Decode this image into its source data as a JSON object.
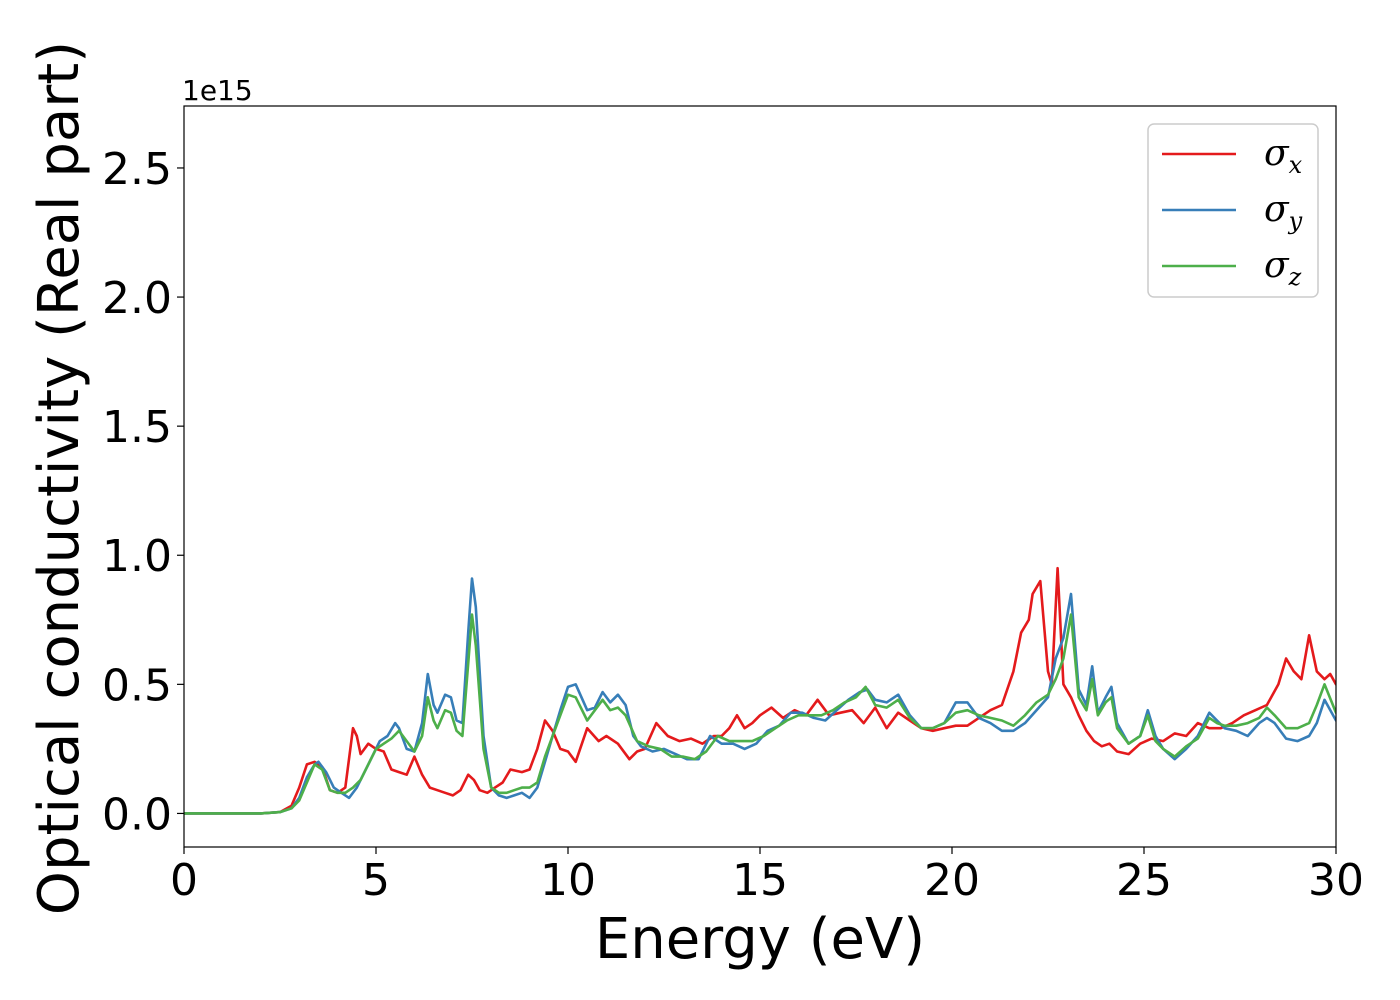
{
  "chart_data": {
    "type": "line",
    "xlabel": "Energy (eV)",
    "ylabel": "Optical conductivity (Real part)",
    "y_offset_label": "1e15",
    "xlim": [
      0,
      30
    ],
    "ylim": [
      -0.13,
      2.74
    ],
    "x_ticks": [
      0,
      5,
      10,
      15,
      20,
      25,
      30
    ],
    "x_tick_labels": [
      "0",
      "5",
      "10",
      "15",
      "20",
      "25",
      "30"
    ],
    "y_ticks": [
      0.0,
      0.5,
      1.0,
      1.5,
      2.0,
      2.5
    ],
    "y_tick_labels": [
      "0.0",
      "0.5",
      "1.0",
      "1.5",
      "2.0",
      "2.5"
    ],
    "grid": false,
    "legend": {
      "position": "top-right",
      "entries": [
        {
          "symbol": "σ",
          "subscript": "x",
          "color": "#e41a1c"
        },
        {
          "symbol": "σ",
          "subscript": "y",
          "color": "#377eb8"
        },
        {
          "symbol": "σ",
          "subscript": "z",
          "color": "#4daf4a"
        }
      ]
    },
    "series": [
      {
        "color": "#e41a1c",
        "x": [
          0,
          1,
          2,
          2.5,
          2.8,
          3.0,
          3.2,
          3.4,
          3.6,
          3.8,
          4.0,
          4.2,
          4.4,
          4.5,
          4.6,
          4.8,
          5.0,
          5.2,
          5.4,
          5.6,
          5.8,
          6.0,
          6.2,
          6.4,
          6.6,
          6.8,
          7.0,
          7.2,
          7.4,
          7.55,
          7.7,
          7.9,
          8.1,
          8.3,
          8.5,
          8.8,
          9.0,
          9.2,
          9.4,
          9.6,
          9.8,
          10.0,
          10.2,
          10.5,
          10.8,
          11.0,
          11.3,
          11.6,
          11.8,
          12.0,
          12.3,
          12.6,
          12.9,
          13.2,
          13.5,
          13.8,
          14.0,
          14.2,
          14.4,
          14.6,
          14.8,
          15.0,
          15.3,
          15.6,
          15.9,
          16.2,
          16.5,
          16.8,
          17.1,
          17.4,
          17.7,
          18.0,
          18.3,
          18.6,
          18.9,
          19.2,
          19.5,
          19.8,
          20.1,
          20.4,
          20.7,
          21.0,
          21.3,
          21.6,
          21.8,
          22.0,
          22.1,
          22.3,
          22.5,
          22.6,
          22.75,
          22.9,
          23.1,
          23.3,
          23.5,
          23.7,
          23.9,
          24.1,
          24.3,
          24.6,
          24.9,
          25.2,
          25.5,
          25.8,
          26.1,
          26.4,
          26.7,
          27.0,
          27.3,
          27.6,
          27.9,
          28.2,
          28.5,
          28.7,
          28.9,
          29.1,
          29.3,
          29.5,
          29.7,
          29.85,
          30.0
        ],
        "y": [
          0,
          0,
          0,
          0.005,
          0.03,
          0.1,
          0.19,
          0.2,
          0.18,
          0.09,
          0.08,
          0.1,
          0.33,
          0.3,
          0.23,
          0.27,
          0.25,
          0.24,
          0.17,
          0.16,
          0.15,
          0.22,
          0.15,
          0.1,
          0.09,
          0.08,
          0.07,
          0.09,
          0.15,
          0.13,
          0.09,
          0.08,
          0.1,
          0.12,
          0.17,
          0.16,
          0.17,
          0.25,
          0.36,
          0.32,
          0.25,
          0.24,
          0.2,
          0.33,
          0.28,
          0.3,
          0.27,
          0.21,
          0.24,
          0.25,
          0.35,
          0.3,
          0.28,
          0.29,
          0.27,
          0.3,
          0.3,
          0.33,
          0.38,
          0.33,
          0.35,
          0.38,
          0.41,
          0.37,
          0.4,
          0.38,
          0.44,
          0.38,
          0.39,
          0.4,
          0.35,
          0.41,
          0.33,
          0.39,
          0.36,
          0.33,
          0.32,
          0.33,
          0.34,
          0.34,
          0.37,
          0.4,
          0.42,
          0.55,
          0.7,
          0.75,
          0.85,
          0.9,
          0.55,
          0.5,
          0.95,
          0.5,
          0.45,
          0.38,
          0.32,
          0.28,
          0.26,
          0.27,
          0.24,
          0.23,
          0.27,
          0.29,
          0.28,
          0.31,
          0.3,
          0.35,
          0.33,
          0.33,
          0.35,
          0.38,
          0.4,
          0.42,
          0.5,
          0.6,
          0.55,
          0.52,
          0.69,
          0.55,
          0.52,
          0.54,
          0.5
        ]
      },
      {
        "color": "#377eb8",
        "x": [
          0,
          1,
          2,
          2.5,
          2.8,
          3.0,
          3.2,
          3.4,
          3.5,
          3.7,
          3.9,
          4.1,
          4.3,
          4.5,
          4.7,
          4.9,
          5.1,
          5.3,
          5.5,
          5.6,
          5.8,
          6.0,
          6.2,
          6.35,
          6.5,
          6.6,
          6.8,
          6.95,
          7.1,
          7.25,
          7.4,
          7.5,
          7.6,
          7.8,
          8.0,
          8.2,
          8.4,
          8.6,
          8.8,
          9.0,
          9.2,
          9.4,
          9.6,
          9.8,
          10.0,
          10.2,
          10.5,
          10.7,
          10.9,
          11.1,
          11.3,
          11.5,
          11.7,
          11.9,
          12.2,
          12.5,
          12.8,
          13.1,
          13.4,
          13.7,
          14.0,
          14.3,
          14.6,
          14.9,
          15.2,
          15.5,
          15.8,
          16.1,
          16.4,
          16.7,
          17.0,
          17.3,
          17.6,
          17.8,
          18.0,
          18.3,
          18.6,
          18.9,
          19.2,
          19.5,
          19.8,
          20.1,
          20.4,
          20.7,
          21.0,
          21.3,
          21.6,
          21.9,
          22.2,
          22.5,
          22.7,
          22.9,
          23.1,
          23.3,
          23.5,
          23.65,
          23.8,
          24.0,
          24.15,
          24.3,
          24.6,
          24.9,
          25.1,
          25.3,
          25.5,
          25.8,
          26.1,
          26.4,
          26.7,
          26.9,
          27.1,
          27.4,
          27.7,
          28.0,
          28.2,
          28.4,
          28.7,
          29.0,
          29.3,
          29.5,
          29.7,
          30.0
        ],
        "y": [
          0,
          0,
          0,
          0.005,
          0.02,
          0.06,
          0.14,
          0.19,
          0.2,
          0.16,
          0.1,
          0.08,
          0.06,
          0.1,
          0.16,
          0.22,
          0.28,
          0.3,
          0.35,
          0.33,
          0.25,
          0.24,
          0.35,
          0.54,
          0.42,
          0.39,
          0.46,
          0.45,
          0.36,
          0.35,
          0.7,
          0.91,
          0.8,
          0.3,
          0.1,
          0.07,
          0.06,
          0.07,
          0.08,
          0.06,
          0.1,
          0.2,
          0.3,
          0.4,
          0.49,
          0.5,
          0.4,
          0.41,
          0.47,
          0.43,
          0.46,
          0.42,
          0.3,
          0.26,
          0.24,
          0.25,
          0.23,
          0.21,
          0.21,
          0.3,
          0.27,
          0.27,
          0.25,
          0.27,
          0.32,
          0.34,
          0.39,
          0.39,
          0.37,
          0.36,
          0.4,
          0.44,
          0.47,
          0.48,
          0.44,
          0.43,
          0.46,
          0.38,
          0.33,
          0.33,
          0.35,
          0.43,
          0.43,
          0.37,
          0.35,
          0.32,
          0.32,
          0.35,
          0.4,
          0.45,
          0.6,
          0.68,
          0.85,
          0.48,
          0.42,
          0.57,
          0.39,
          0.45,
          0.49,
          0.35,
          0.27,
          0.3,
          0.4,
          0.3,
          0.25,
          0.21,
          0.25,
          0.3,
          0.39,
          0.36,
          0.33,
          0.32,
          0.3,
          0.35,
          0.37,
          0.35,
          0.29,
          0.28,
          0.3,
          0.35,
          0.44,
          0.36
        ]
      },
      {
        "color": "#4daf4a",
        "x": [
          0,
          1,
          2,
          2.5,
          2.8,
          3.0,
          3.2,
          3.4,
          3.6,
          3.8,
          4.0,
          4.2,
          4.4,
          4.6,
          4.8,
          5.0,
          5.2,
          5.4,
          5.6,
          5.8,
          6.0,
          6.2,
          6.35,
          6.5,
          6.6,
          6.8,
          6.95,
          7.1,
          7.25,
          7.4,
          7.5,
          7.6,
          7.8,
          8.0,
          8.2,
          8.4,
          8.6,
          8.8,
          9.0,
          9.2,
          9.4,
          9.6,
          9.8,
          10.0,
          10.2,
          10.5,
          10.7,
          10.9,
          11.1,
          11.3,
          11.5,
          11.8,
          12.1,
          12.4,
          12.7,
          13.0,
          13.3,
          13.6,
          13.9,
          14.2,
          14.5,
          14.8,
          15.1,
          15.4,
          15.7,
          16.0,
          16.3,
          16.6,
          16.9,
          17.2,
          17.5,
          17.75,
          18.0,
          18.3,
          18.6,
          18.9,
          19.2,
          19.5,
          19.8,
          20.1,
          20.4,
          20.7,
          21.0,
          21.3,
          21.6,
          21.9,
          22.2,
          22.5,
          22.7,
          22.9,
          23.1,
          23.3,
          23.5,
          23.65,
          23.8,
          24.0,
          24.15,
          24.3,
          24.6,
          24.9,
          25.1,
          25.3,
          25.5,
          25.8,
          26.1,
          26.4,
          26.7,
          26.9,
          27.1,
          27.4,
          27.7,
          28.0,
          28.2,
          28.4,
          28.7,
          29.0,
          29.3,
          29.5,
          29.7,
          30.0
        ],
        "y": [
          0,
          0,
          0,
          0.005,
          0.02,
          0.05,
          0.12,
          0.19,
          0.17,
          0.09,
          0.08,
          0.08,
          0.1,
          0.13,
          0.19,
          0.25,
          0.27,
          0.29,
          0.32,
          0.28,
          0.24,
          0.3,
          0.45,
          0.36,
          0.33,
          0.4,
          0.39,
          0.32,
          0.3,
          0.58,
          0.77,
          0.65,
          0.25,
          0.1,
          0.08,
          0.08,
          0.09,
          0.1,
          0.1,
          0.12,
          0.22,
          0.3,
          0.38,
          0.46,
          0.45,
          0.36,
          0.4,
          0.44,
          0.4,
          0.41,
          0.38,
          0.28,
          0.26,
          0.25,
          0.22,
          0.22,
          0.21,
          0.24,
          0.3,
          0.28,
          0.28,
          0.28,
          0.3,
          0.33,
          0.36,
          0.38,
          0.38,
          0.38,
          0.4,
          0.43,
          0.45,
          0.49,
          0.42,
          0.41,
          0.44,
          0.37,
          0.33,
          0.33,
          0.35,
          0.39,
          0.4,
          0.38,
          0.37,
          0.36,
          0.34,
          0.38,
          0.43,
          0.46,
          0.52,
          0.6,
          0.77,
          0.45,
          0.4,
          0.52,
          0.38,
          0.43,
          0.45,
          0.33,
          0.27,
          0.3,
          0.38,
          0.28,
          0.25,
          0.22,
          0.26,
          0.29,
          0.37,
          0.35,
          0.34,
          0.34,
          0.35,
          0.37,
          0.41,
          0.38,
          0.33,
          0.33,
          0.35,
          0.42,
          0.5,
          0.39
        ]
      }
    ]
  }
}
